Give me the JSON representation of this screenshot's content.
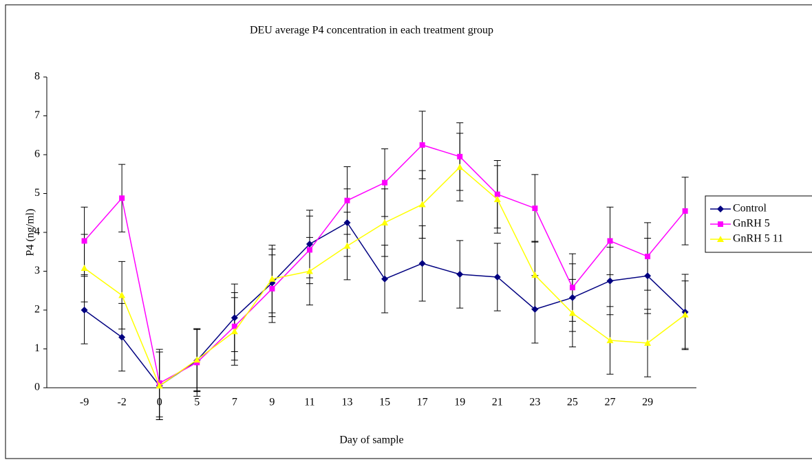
{
  "chart_data": {
    "type": "line",
    "title": "DEU average P4 concentration in each treatment group",
    "x_label": "Day of sample",
    "y_label": "P4 (ng/ml)",
    "categories": [
      "-9",
      "-2",
      "0",
      "5",
      "7",
      "9",
      "11",
      "13",
      "15",
      "17",
      "19",
      "21",
      "23",
      "25",
      "27",
      "29",
      null
    ],
    "series": [
      {
        "name": "Control",
        "color": "#000080",
        "marker": "diamond",
        "values": [
          2.0,
          1.3,
          0.05,
          0.7,
          1.8,
          2.7,
          3.7,
          4.25,
          2.8,
          3.2,
          2.92,
          2.85,
          2.02,
          2.32,
          2.75,
          2.88,
          1.95
        ],
        "errors": [
          0.87,
          0.87,
          0.87,
          0.8,
          0.87,
          0.87,
          0.87,
          0.87,
          0.87,
          0.97,
          0.87,
          0.87,
          0.87,
          0.87,
          0.87,
          0.97,
          0.97
        ]
      },
      {
        "name": "GnRH 5",
        "color": "#ff00ff",
        "marker": "square",
        "values": [
          3.78,
          4.88,
          0.12,
          0.65,
          1.58,
          2.55,
          3.55,
          4.82,
          5.28,
          6.25,
          5.95,
          4.98,
          4.62,
          2.58,
          3.78,
          3.38,
          4.55
        ],
        "errors": [
          0.87,
          0.87,
          0.87,
          0.87,
          0.87,
          0.87,
          0.87,
          0.87,
          0.87,
          0.87,
          0.87,
          0.87,
          0.87,
          0.87,
          0.87,
          0.87,
          0.87
        ]
      },
      {
        "name": "GnRH 5 11",
        "color": "#ffff00",
        "marker": "triangle",
        "values": [
          3.08,
          2.38,
          0.05,
          0.72,
          1.45,
          2.8,
          3.0,
          3.65,
          4.25,
          4.72,
          5.68,
          4.85,
          2.9,
          1.92,
          1.22,
          1.15,
          1.88
        ],
        "errors": [
          0.87,
          0.87,
          0.87,
          0.8,
          0.87,
          0.87,
          0.87,
          0.87,
          0.87,
          0.87,
          0.87,
          0.87,
          0.87,
          0.87,
          0.87,
          0.87,
          0.87
        ]
      }
    ],
    "ylim": [
      0,
      8
    ],
    "yticks": [
      0,
      1,
      2,
      3,
      4,
      5,
      6,
      7,
      8
    ],
    "error_bars": true,
    "legend": "right"
  }
}
